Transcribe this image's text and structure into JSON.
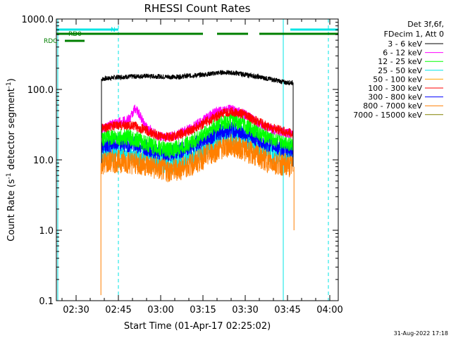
{
  "chart_data": {
    "type": "line",
    "title": "RHESSI Count Rates",
    "xlabel": "Start Time (01-Apr-17 02:25:02)",
    "ylabel_main": "Count Rate (s",
    "ylabel_exp1": "-1",
    "ylabel_mid": " detector segment",
    "ylabel_exp2": "-1",
    "ylabel_end": ")",
    "x_unit": "minutes after 02:25:02",
    "xlim": [
      -2,
      98
    ],
    "ylim": [
      0.1,
      1000
    ],
    "yscale": "log",
    "x_ticks": [
      {
        "value": 5,
        "label": "02:30"
      },
      {
        "value": 20,
        "label": "02:45"
      },
      {
        "value": 35,
        "label": "03:00"
      },
      {
        "value": 50,
        "label": "03:15"
      },
      {
        "value": 65,
        "label": "03:30"
      },
      {
        "value": 80,
        "label": "03:45"
      },
      {
        "value": 95,
        "label": "04:00"
      }
    ],
    "y_ticks": [
      {
        "value": 0.1,
        "label": "0.1"
      },
      {
        "value": 1,
        "label": "1.0"
      },
      {
        "value": 10,
        "label": "10.0"
      },
      {
        "value": 100,
        "label": "100.0"
      },
      {
        "value": 1000,
        "label": "1000.0"
      }
    ],
    "legend_header": [
      "Det 3f,6f,",
      "FDecim 1, Att 0"
    ],
    "series": [
      {
        "name": "3 - 6 keV",
        "color": "#000000",
        "x": [
          14,
          20,
          30,
          40,
          50,
          57,
          62,
          70,
          76,
          79.5,
          82
        ],
        "y": [
          140,
          150,
          155,
          150,
          162,
          175,
          170,
          150,
          135,
          125,
          125
        ]
      },
      {
        "name": "6 - 12 keV",
        "color": "#ff00ff",
        "x": [
          14,
          18,
          24,
          26,
          28,
          30,
          34,
          38,
          42,
          47,
          52,
          56,
          60,
          64,
          68,
          72,
          76,
          79.5,
          82
        ],
        "y": [
          27,
          32,
          38,
          55,
          40,
          29,
          22,
          21,
          24,
          30,
          42,
          50,
          52,
          46,
          37,
          30,
          26,
          24,
          23
        ]
      },
      {
        "name": "12 - 25 keV",
        "color": "#00ff00",
        "x": [
          14,
          18,
          22,
          26,
          30,
          34,
          38,
          42,
          47,
          52,
          56,
          60,
          64,
          68,
          72,
          76,
          79.5,
          82
        ],
        "y": [
          20,
          21,
          21,
          20,
          17,
          15,
          14,
          15,
          19,
          26,
          33,
          36,
          33,
          27,
          22,
          19,
          18,
          17
        ]
      },
      {
        "name": "25 - 50 keV",
        "color": "#00e5e5",
        "x": [
          14,
          18,
          22,
          26,
          30,
          34,
          38,
          42,
          47,
          52,
          56,
          60,
          64,
          68,
          72,
          76,
          79.5,
          82
        ],
        "y": [
          13,
          13.5,
          13,
          12,
          10.5,
          9.5,
          9,
          10,
          12.5,
          17,
          21,
          23,
          21,
          17,
          14,
          12,
          11.5,
          11
        ]
      },
      {
        "name": "50 - 100 keV",
        "color": "#ffa500",
        "x": [],
        "y": []
      },
      {
        "name": "100 - 300 keV",
        "color": "#ff0000",
        "x": [
          14,
          18,
          22,
          26,
          30,
          34,
          38,
          42,
          47,
          52,
          56,
          60,
          64,
          68,
          72,
          76,
          79.5,
          82
        ],
        "y": [
          28,
          30,
          31,
          30,
          26,
          22,
          21,
          23,
          28,
          36,
          44,
          48,
          45,
          37,
          31,
          27,
          25,
          23
        ]
      },
      {
        "name": "300 - 800 keV",
        "color": "#0000ff",
        "x": [
          14,
          18,
          22,
          26,
          30,
          34,
          38,
          42,
          47,
          52,
          56,
          60,
          64,
          68,
          72,
          76,
          79.5,
          82
        ],
        "y": [
          16,
          17,
          17,
          16.5,
          15,
          13,
          12.5,
          13.5,
          16.5,
          21,
          25,
          27,
          25,
          21,
          17.5,
          15.5,
          14.5,
          14
        ]
      },
      {
        "name": "800 - 7000 keV",
        "color": "#ff7f00",
        "x": [
          14,
          18,
          22,
          26,
          30,
          34,
          38,
          42,
          47,
          52,
          56,
          60,
          64,
          68,
          72,
          76,
          79.5,
          82
        ],
        "y": [
          9,
          9.5,
          9.5,
          9,
          8.5,
          7.5,
          7,
          7.5,
          9,
          12,
          14.5,
          16,
          14.5,
          12,
          10,
          9,
          8.5,
          8
        ]
      },
      {
        "name": "7000 - 15000 keV",
        "color": "#808000",
        "x": [],
        "y": []
      }
    ],
    "flags": [
      {
        "label": "N",
        "color": "#00e5e5",
        "level": 0,
        "intervals": [
          [
            -2,
            20
          ],
          [
            81,
            98
          ]
        ]
      },
      {
        "label": "RD0",
        "color": "#007f00",
        "level": 1,
        "intervals": [
          [
            -2,
            50
          ],
          [
            55,
            66
          ],
          [
            70,
            98
          ]
        ]
      },
      {
        "label": "RDC",
        "color": "#007f00",
        "level": 2,
        "intervals": [
          [
            1,
            8
          ]
        ]
      }
    ],
    "solid_vlines": [
      -1.5,
      78.5
    ],
    "dashed_vlines": [
      20,
      94.5
    ],
    "timestamp": "31-Aug-2022 17:18"
  }
}
